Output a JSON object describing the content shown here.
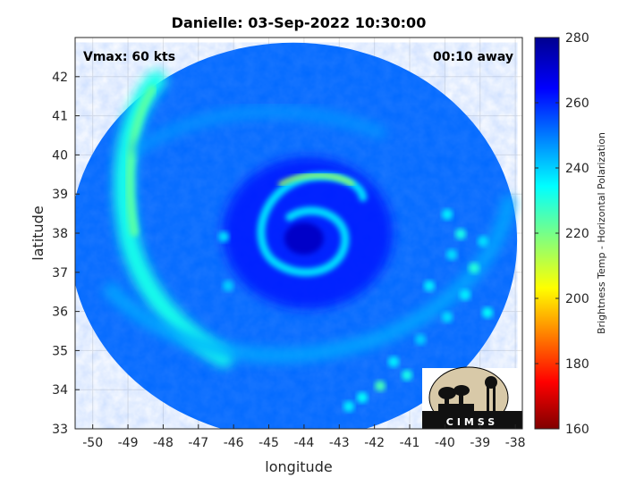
{
  "title": "Danielle: 03-Sep-2022 10:30:00",
  "annotations": {
    "vmax": "Vmax: 60 kts",
    "time_away": "00:10 away"
  },
  "axes": {
    "xlabel": "longitude",
    "ylabel": "latitude",
    "xlim": [
      -50.5,
      -37.8
    ],
    "ylim": [
      33,
      43
    ],
    "xticks": [
      -50,
      -49,
      -48,
      -47,
      -46,
      -45,
      -44,
      -43,
      -42,
      -41,
      -40,
      -39,
      -38
    ],
    "yticks": [
      33,
      34,
      35,
      36,
      37,
      38,
      39,
      40,
      41,
      42
    ],
    "grid": true
  },
  "colorbar": {
    "label": "Brightness Temp - Horizontal Polarization",
    "range": [
      160,
      280
    ],
    "ticks": [
      160,
      180,
      200,
      220,
      240,
      260,
      280
    ],
    "colormap": "jet-reversed"
  },
  "swath": {
    "center_lon": -44.3,
    "center_lat": 37.8,
    "eye_lon": -43.9,
    "eye_lat": 38.0,
    "background_temp": 252
  },
  "logo": {
    "text": "CIMSS"
  }
}
